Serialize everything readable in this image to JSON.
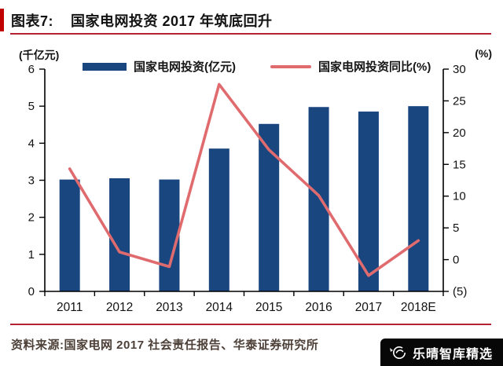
{
  "header": {
    "figure_label": "图表7:",
    "title": "国家电网投资 2017 年筑底回升"
  },
  "legend": [
    {
      "label": "国家电网投资(亿元)",
      "type": "bar",
      "color": "#1A4680"
    },
    {
      "label": "国家电网投资同比(%)",
      "type": "line",
      "color": "#E06B6F"
    }
  ],
  "chart_data": {
    "type": "bar",
    "subtype": "bar+line-dual-axis",
    "categories": [
      "2011",
      "2012",
      "2013",
      "2014",
      "2015",
      "2016",
      "2017",
      "2018E"
    ],
    "series": [
      {
        "name": "国家电网投资(亿元)",
        "type": "bar",
        "axis": "left",
        "unit": "亿元",
        "values": [
          3019,
          3054,
          3020,
          3855,
          4521,
          4977,
          4854,
          5000
        ],
        "color": "#1A4680"
      },
      {
        "name": "国家电网投资同比(%)",
        "type": "line",
        "axis": "right",
        "unit": "%",
        "values": [
          14.3,
          1.2,
          -1.1,
          27.6,
          17.3,
          10.1,
          -2.5,
          3.0
        ],
        "color": "#E06B6F"
      }
    ],
    "left_axis": {
      "label": "(千亿元)",
      "min": 0,
      "max": 6,
      "step": 1,
      "tick_values": [
        0,
        1,
        2,
        3,
        4,
        5,
        6
      ],
      "tick_labels": [
        "0",
        "1",
        "2",
        "3",
        "4",
        "5",
        "6"
      ],
      "bar_value_scale": 1000
    },
    "right_axis": {
      "label": "(%)",
      "min": -5,
      "max": 30,
      "step": 5,
      "tick_values": [
        -5,
        0,
        5,
        10,
        15,
        20,
        25,
        30
      ],
      "tick_labels": [
        "(5)",
        "0",
        "5",
        "10",
        "15",
        "20",
        "25",
        "30"
      ]
    },
    "grid": false,
    "legend_position": "top"
  },
  "footer": {
    "source": "资料来源:国家电网 2017 社会责任报告、华泰证券研究所"
  },
  "badge": {
    "text": "乐晴智库精选"
  },
  "colors": {
    "bar": "#1A4680",
    "line": "#E06B6F",
    "accent_red": "#C00000",
    "rule_red": "#B22230",
    "axis": "#000000",
    "footer_text": "#4D4038",
    "badge_bg": "#070707",
    "badge_text": "#FFFFFF"
  }
}
